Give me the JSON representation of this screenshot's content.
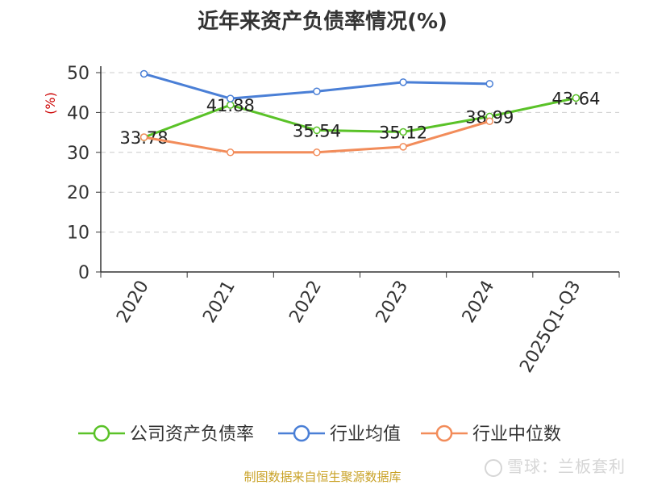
{
  "chart_data": {
    "type": "line",
    "title": "近年来资产负债率情况(%)",
    "ylabel": "(%)",
    "xlabel": "",
    "categories": [
      "2020",
      "2021",
      "2022",
      "2023",
      "2024",
      "2025Q1-Q3"
    ],
    "ylim": [
      0,
      50
    ],
    "yticks": [
      0,
      10,
      20,
      30,
      40,
      50
    ],
    "grid": true,
    "legend_position": "bottom",
    "series": [
      {
        "name": "公司资产负债率",
        "color": "#5ac228",
        "values": [
          33.78,
          41.88,
          35.54,
          35.12,
          38.99,
          43.64
        ],
        "labels": [
          "33.78",
          "41.88",
          "35.54",
          "35.12",
          "38.99",
          "43.64"
        ]
      },
      {
        "name": "行业均值",
        "color": "#4a7fd6",
        "values": [
          49.7,
          43.5,
          45.3,
          47.6,
          47.2,
          null
        ]
      },
      {
        "name": "行业中位数",
        "color": "#f28c5a",
        "values": [
          33.8,
          30.0,
          30.0,
          31.4,
          37.8,
          null
        ]
      }
    ]
  },
  "footer": {
    "source": "制图数据来自恒生聚源数据库",
    "watermark": "雪球：兰板套利"
  }
}
